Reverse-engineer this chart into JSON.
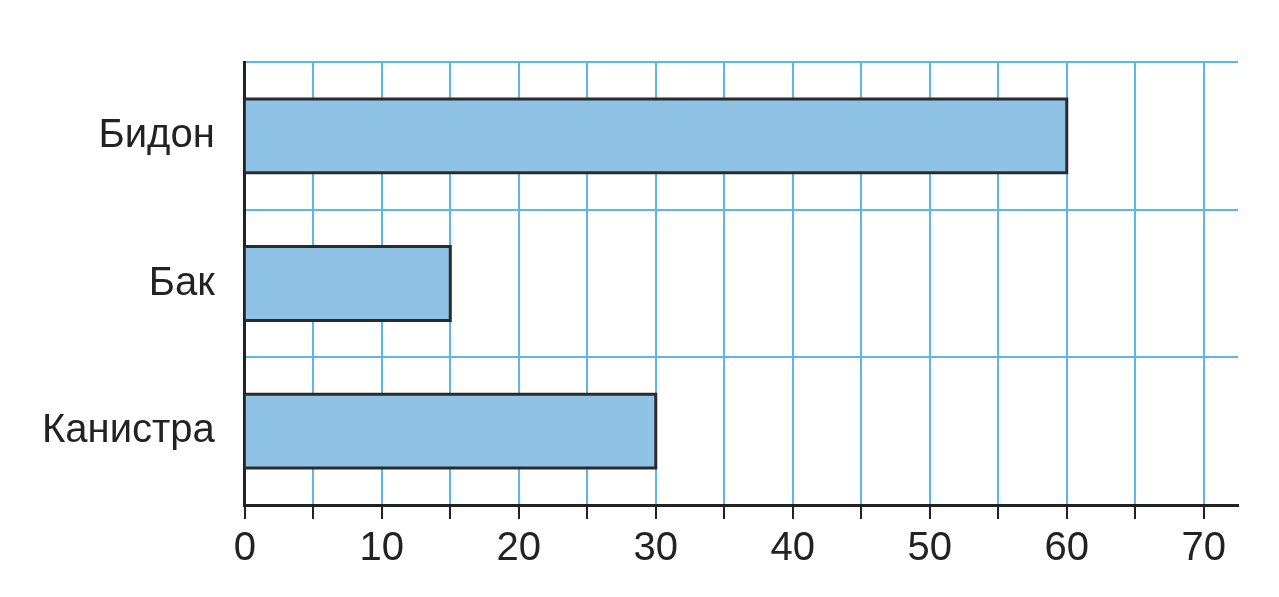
{
  "chart_data": {
    "type": "bar",
    "orientation": "horizontal",
    "categories": [
      "Бидон",
      "Бак",
      "Канистра"
    ],
    "values": [
      60,
      15,
      30
    ],
    "color": "#8fc3e6",
    "xlim": [
      0,
      72.5
    ],
    "xticks": [
      0,
      {
        "value": 5,
        "label": null
      },
      10,
      {
        "value": 15,
        "label": null
      },
      20,
      {
        "value": 25,
        "label": null
      },
      30,
      {
        "value": 35,
        "label": null
      },
      40,
      {
        "value": 45,
        "label": null
      },
      50,
      {
        "value": 55,
        "label": null
      },
      60,
      {
        "value": 65,
        "label": null
      },
      70
    ],
    "grid": true,
    "legend": false
  }
}
